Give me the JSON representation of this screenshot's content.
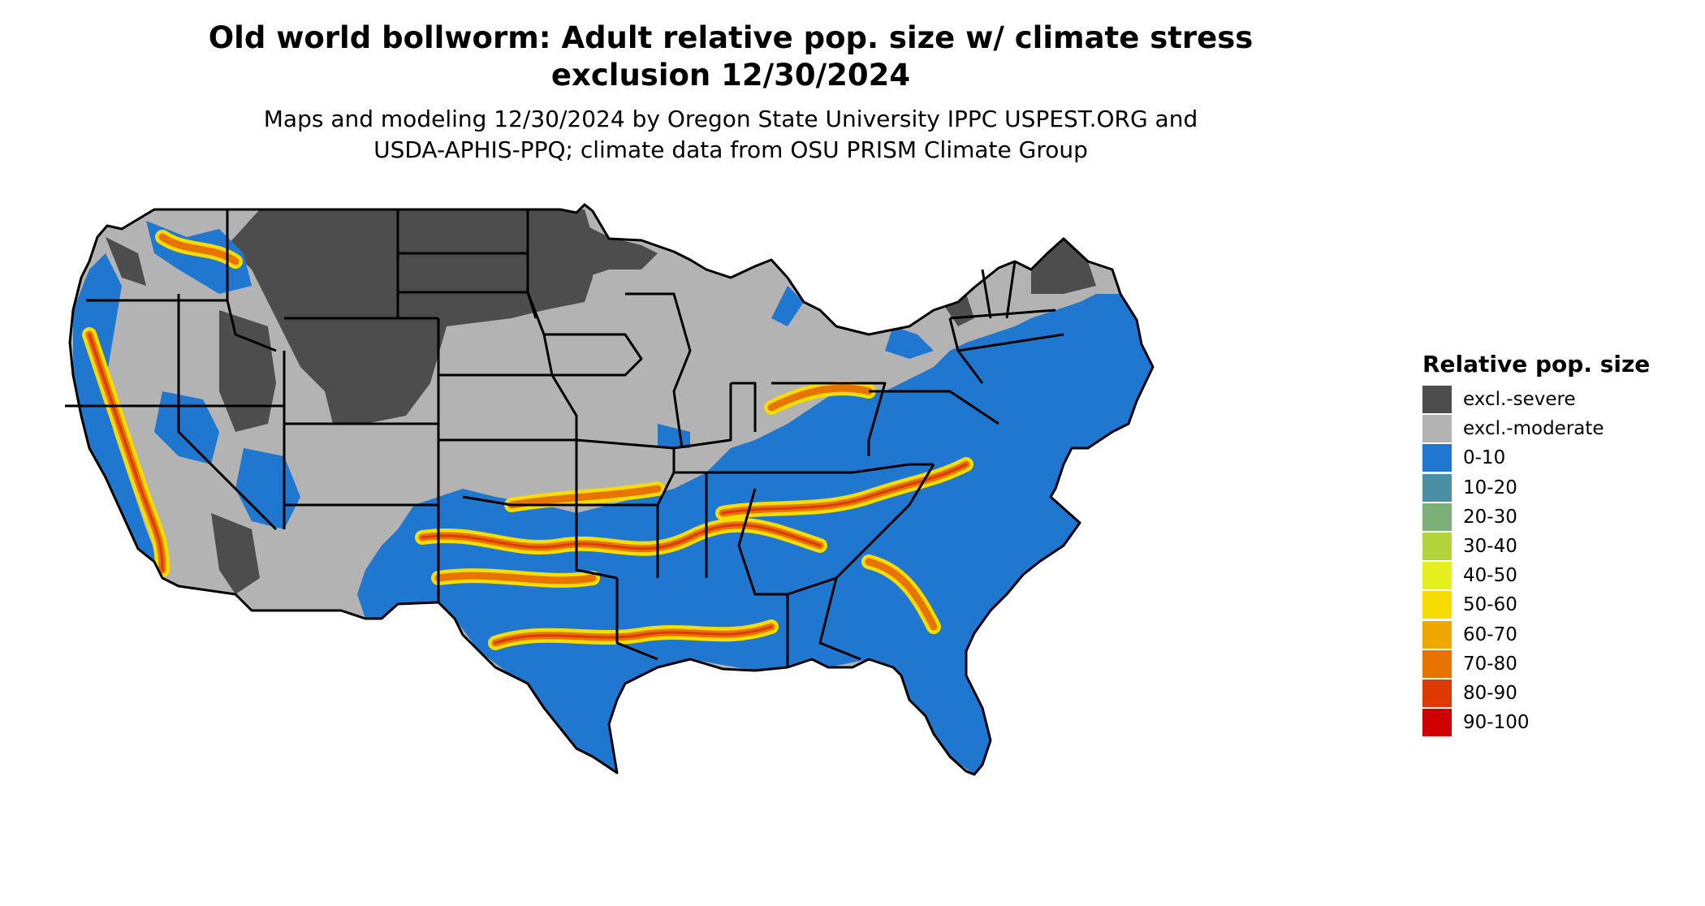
{
  "header": {
    "title_line_1": "Old world bollworm: Adult relative pop. size w/ climate stress",
    "title_line_2": "exclusion 12/30/2024",
    "subtitle_line_1": "Maps and modeling 12/30/2024 by Oregon State University IPPC USPEST.ORG and",
    "subtitle_line_2": "USDA-APHIS-PPQ; climate data from OSU PRISM Climate Group"
  },
  "legend": {
    "title": "Relative pop. size",
    "items": [
      {
        "label": "excl.-severe",
        "color": "#4d4d4d"
      },
      {
        "label": "excl.-moderate",
        "color": "#b3b3b3"
      },
      {
        "label": "0-10",
        "color": "#1f77d0"
      },
      {
        "label": "10-20",
        "color": "#4a8fa3"
      },
      {
        "label": "20-30",
        "color": "#7bb079"
      },
      {
        "label": "30-40",
        "color": "#b4d43d"
      },
      {
        "label": "40-50",
        "color": "#e6ef1f"
      },
      {
        "label": "50-60",
        "color": "#f7dc00"
      },
      {
        "label": "60-70",
        "color": "#f0a800"
      },
      {
        "label": "70-80",
        "color": "#e87400"
      },
      {
        "label": "80-90",
        "color": "#dc3a00"
      },
      {
        "label": "90-100",
        "color": "#d10000"
      }
    ]
  }
}
